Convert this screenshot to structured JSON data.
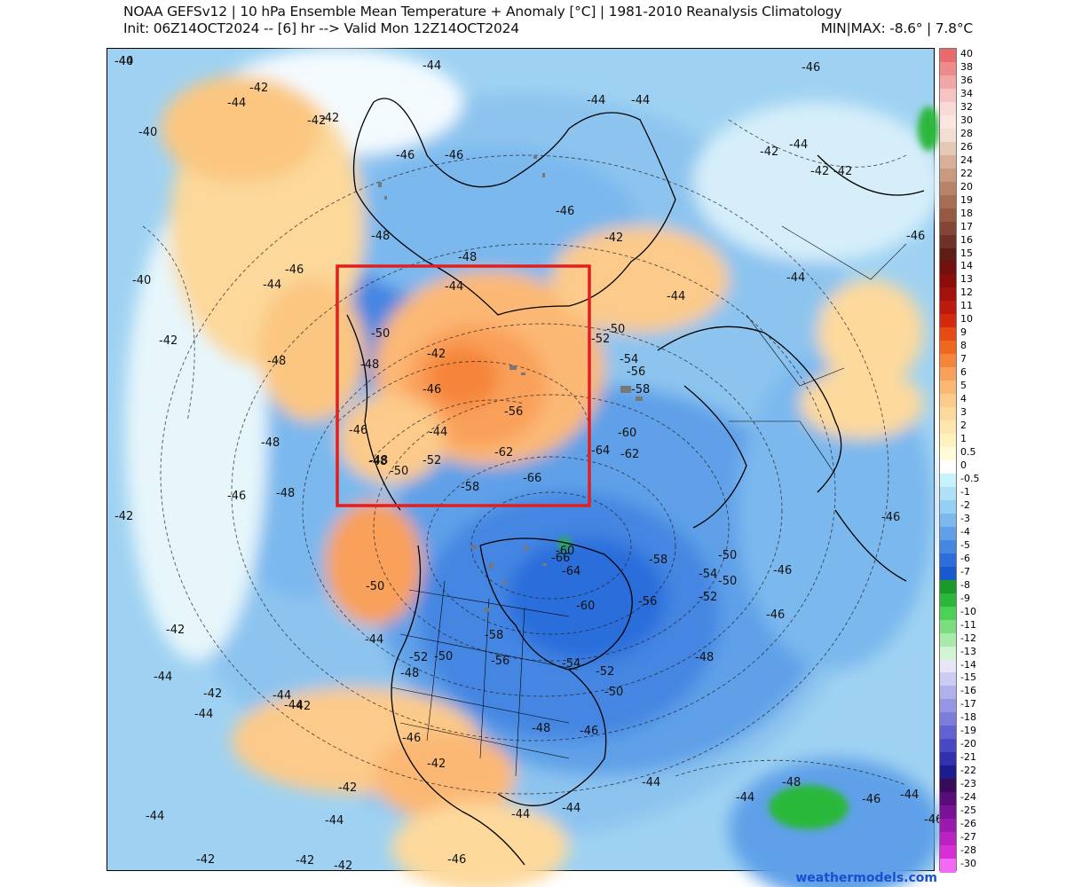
{
  "header": {
    "title": "NOAA GEFSv12 | 10 hPa Ensemble Mean Temperature + Anomaly [°C] | 1981-2010 Reanalysis Climatology",
    "init": "Init: 06Z14OCT2024 -- [6] hr --> Valid Mon 12Z14OCT2024",
    "minmax": "MIN|MAX: -8.6° | 7.8°C"
  },
  "watermark": "weathermodels.com",
  "colorbar": [
    {
      "label": "40",
      "color": "#e86a6a"
    },
    {
      "label": "38",
      "color": "#ee8a8a"
    },
    {
      "label": "36",
      "color": "#f3a6a6"
    },
    {
      "label": "34",
      "color": "#f7c2c2"
    },
    {
      "label": "32",
      "color": "#fad9d9"
    },
    {
      "label": "30",
      "color": "#fbe6e0"
    },
    {
      "label": "28",
      "color": "#f2ded2"
    },
    {
      "label": "26",
      "color": "#e6c8b6"
    },
    {
      "label": "24",
      "color": "#d8b09a"
    },
    {
      "label": "22",
      "color": "#c99a80"
    },
    {
      "label": "20",
      "color": "#b98368"
    },
    {
      "label": "19",
      "color": "#a86e54"
    },
    {
      "label": "18",
      "color": "#965a42"
    },
    {
      "label": "17",
      "color": "#834634"
    },
    {
      "label": "16",
      "color": "#6e3227"
    },
    {
      "label": "15",
      "color": "#5e1e16"
    },
    {
      "label": "14",
      "color": "#721010"
    },
    {
      "label": "13",
      "color": "#8a0d0a"
    },
    {
      "label": "12",
      "color": "#a3120a"
    },
    {
      "label": "11",
      "color": "#bb1a0c"
    },
    {
      "label": "10",
      "color": "#d4290f"
    },
    {
      "label": "9",
      "color": "#e84a14"
    },
    {
      "label": "8",
      "color": "#f0681f"
    },
    {
      "label": "7",
      "color": "#f6853a"
    },
    {
      "label": "6",
      "color": "#f9a05a"
    },
    {
      "label": "5",
      "color": "#fbb874"
    },
    {
      "label": "4",
      "color": "#fcca8a"
    },
    {
      "label": "3",
      "color": "#fdd99c"
    },
    {
      "label": "2",
      "color": "#fee6ac"
    },
    {
      "label": "1",
      "color": "#fff2bd"
    },
    {
      "label": "0.5",
      "color": "#fffbd8"
    },
    {
      "label": "0",
      "color": "#ffffff"
    },
    {
      "label": "-0.5",
      "color": "#c8f2fb"
    },
    {
      "label": "-1",
      "color": "#aee0f6"
    },
    {
      "label": "-2",
      "color": "#94d0f3"
    },
    {
      "label": "-3",
      "color": "#7ab8ee"
    },
    {
      "label": "-4",
      "color": "#5fa0e8"
    },
    {
      "label": "-5",
      "color": "#4586e2"
    },
    {
      "label": "-6",
      "color": "#2b6edc"
    },
    {
      "label": "-7",
      "color": "#1a58d0"
    },
    {
      "label": "-8",
      "color": "#1a9a2a"
    },
    {
      "label": "-9",
      "color": "#2bb83a"
    },
    {
      "label": "-10",
      "color": "#4cd056"
    },
    {
      "label": "-11",
      "color": "#7ade7e"
    },
    {
      "label": "-12",
      "color": "#a8eaa8"
    },
    {
      "label": "-13",
      "color": "#d2f4d0"
    },
    {
      "label": "-14",
      "color": "#e6e6f6"
    },
    {
      "label": "-15",
      "color": "#ccccf2"
    },
    {
      "label": "-16",
      "color": "#b0b0ec"
    },
    {
      "label": "-17",
      "color": "#9696e4"
    },
    {
      "label": "-18",
      "color": "#7c7cdc"
    },
    {
      "label": "-19",
      "color": "#6262d2"
    },
    {
      "label": "-20",
      "color": "#4848c4"
    },
    {
      "label": "-21",
      "color": "#3030b0"
    },
    {
      "label": "-22",
      "color": "#1c1c8e"
    },
    {
      "label": "-23",
      "color": "#3a0a5a"
    },
    {
      "label": "-24",
      "color": "#5a0c7a"
    },
    {
      "label": "-25",
      "color": "#7a1296"
    },
    {
      "label": "-26",
      "color": "#9a1aae"
    },
    {
      "label": "-27",
      "color": "#ba22c4"
    },
    {
      "label": "-28",
      "color": "#d82ed8"
    },
    {
      "label": "-30",
      "color": "#f26af2"
    }
  ],
  "contour_labels": [
    {
      "text": "-40"
    },
    {
      "text": "-44"
    },
    {
      "text": "-42"
    },
    {
      "text": "-46"
    },
    {
      "text": "-44"
    },
    {
      "text": "-42"
    },
    {
      "text": "-40"
    },
    {
      "text": "-44"
    },
    {
      "text": "-46"
    },
    {
      "text": "-44"
    },
    {
      "text": "-42"
    },
    {
      "text": "-42"
    },
    {
      "text": "-46"
    },
    {
      "text": "-44"
    },
    {
      "text": "-42"
    },
    {
      "text": "-48"
    },
    {
      "text": "-46"
    },
    {
      "text": "-40"
    },
    {
      "text": "-44"
    },
    {
      "text": "-48"
    },
    {
      "text": "-44"
    },
    {
      "text": "-46"
    },
    {
      "text": "-44"
    },
    {
      "text": "-42"
    },
    {
      "text": "-50"
    },
    {
      "text": "-48"
    },
    {
      "text": "-42"
    },
    {
      "text": "-48"
    },
    {
      "text": "-44"
    },
    {
      "text": "-42"
    },
    {
      "text": "-46"
    },
    {
      "text": "-56"
    },
    {
      "text": "-52"
    },
    {
      "text": "-50"
    },
    {
      "text": "-54"
    },
    {
      "text": "-56"
    },
    {
      "text": "-58"
    },
    {
      "text": "-42"
    },
    {
      "text": "-46"
    },
    {
      "text": "-44"
    },
    {
      "text": "-48"
    },
    {
      "text": "-60"
    },
    {
      "text": "-62"
    },
    {
      "text": "-46"
    },
    {
      "text": "-48"
    },
    {
      "text": "-52"
    },
    {
      "text": "-50"
    },
    {
      "text": "-62"
    },
    {
      "text": "-64"
    },
    {
      "text": "-48"
    },
    {
      "text": "-46"
    },
    {
      "text": "-42"
    },
    {
      "text": "-58"
    },
    {
      "text": "-66"
    },
    {
      "text": "-48"
    },
    {
      "text": "-44"
    },
    {
      "text": "-42"
    },
    {
      "text": "-46"
    },
    {
      "text": "-60"
    },
    {
      "text": "-66"
    },
    {
      "text": "-64"
    },
    {
      "text": "-58"
    },
    {
      "text": "-54"
    },
    {
      "text": "-50"
    },
    {
      "text": "-52"
    },
    {
      "text": "-56"
    },
    {
      "text": "-60"
    },
    {
      "text": "-50"
    },
    {
      "text": "-46"
    },
    {
      "text": "-48"
    },
    {
      "text": "-42"
    },
    {
      "text": "-58"
    },
    {
      "text": "-56"
    },
    {
      "text": "-54"
    },
    {
      "text": "-52"
    },
    {
      "text": "-52"
    },
    {
      "text": "-50"
    },
    {
      "text": "-48"
    },
    {
      "text": "-44"
    },
    {
      "text": "-44"
    },
    {
      "text": "-42"
    },
    {
      "text": "-44"
    },
    {
      "text": "-44"
    },
    {
      "text": "-42"
    },
    {
      "text": "-50"
    },
    {
      "text": "-50"
    },
    {
      "text": "-48"
    },
    {
      "text": "-46"
    },
    {
      "text": "-46"
    },
    {
      "text": "-46"
    },
    {
      "text": "-44"
    },
    {
      "text": "-44"
    },
    {
      "text": "-42"
    },
    {
      "text": "-42"
    },
    {
      "text": "-44"
    },
    {
      "text": "-44"
    },
    {
      "text": "-46"
    },
    {
      "text": "-48"
    },
    {
      "text": "-46"
    },
    {
      "text": "-44"
    },
    {
      "text": "-42"
    },
    {
      "text": "-42"
    },
    {
      "text": "-46"
    },
    {
      "text": "-44"
    },
    {
      "text": "-44"
    },
    {
      "text": "-44"
    }
  ]
}
